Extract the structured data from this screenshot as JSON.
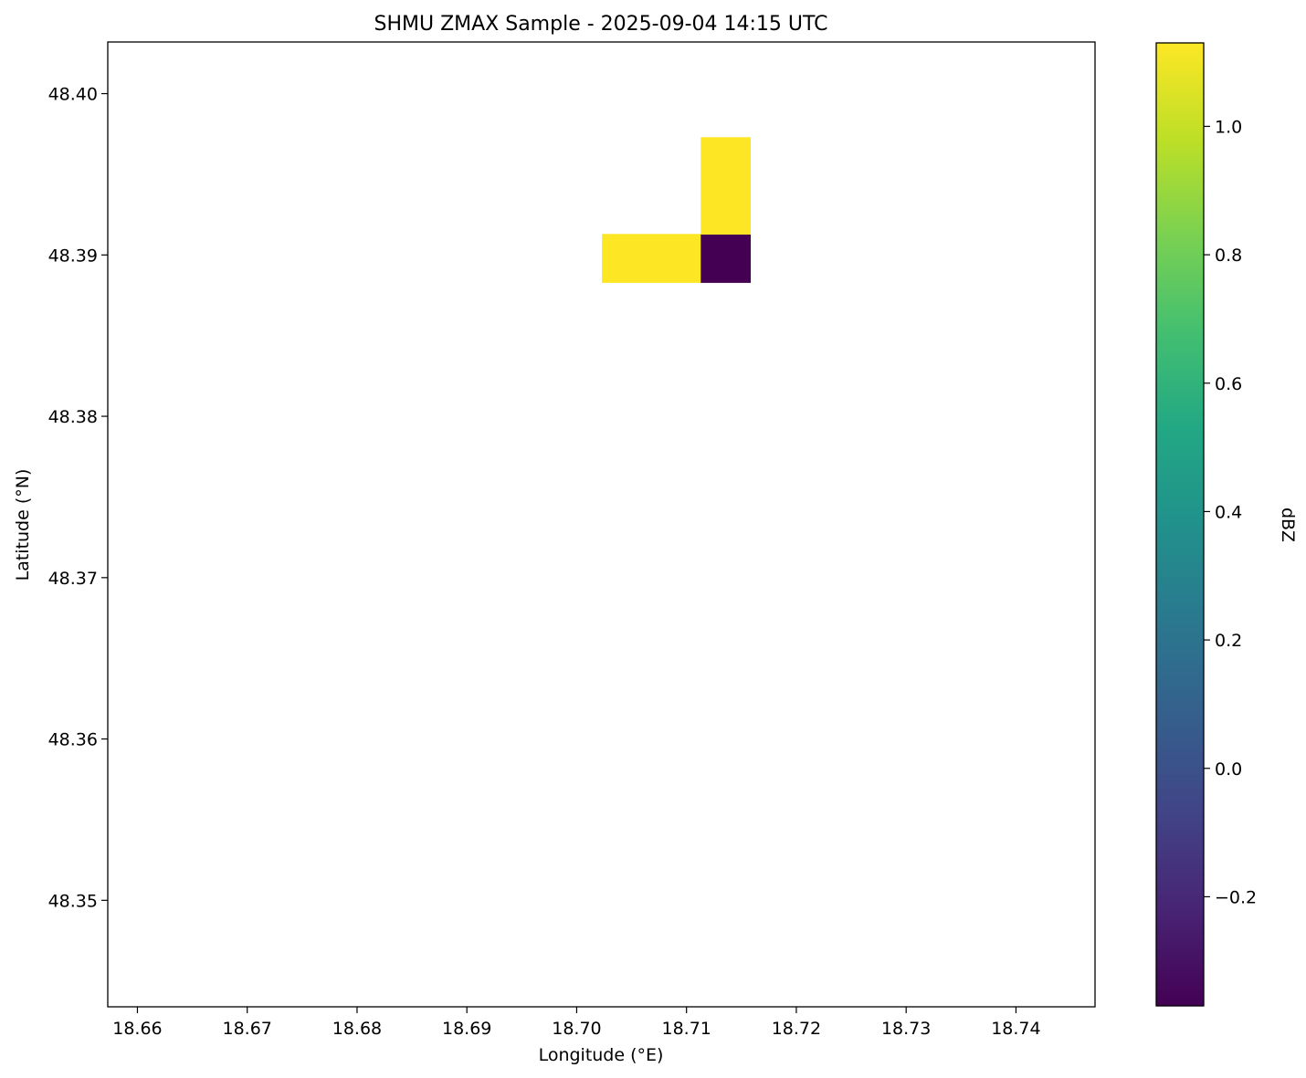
{
  "chart_data": {
    "type": "heatmap",
    "title": "SHMU ZMAX Sample - 2025-09-04 14:15 UTC",
    "xlabel": "Longitude (°E)",
    "ylabel": "Latitude (°N)",
    "xlim": [
      18.6573,
      18.7472
    ],
    "ylim": [
      48.3434,
      48.4032
    ],
    "xticks": [
      {
        "value": 18.66,
        "label": "18.66"
      },
      {
        "value": 18.67,
        "label": "18.67"
      },
      {
        "value": 18.68,
        "label": "18.68"
      },
      {
        "value": 18.69,
        "label": "18.69"
      },
      {
        "value": 18.7,
        "label": "18.70"
      },
      {
        "value": 18.71,
        "label": "18.71"
      },
      {
        "value": 18.72,
        "label": "18.72"
      },
      {
        "value": 18.73,
        "label": "18.73"
      },
      {
        "value": 18.74,
        "label": "18.74"
      }
    ],
    "yticks": [
      {
        "value": 48.35,
        "label": "48.35"
      },
      {
        "value": 48.36,
        "label": "48.36"
      },
      {
        "value": 48.37,
        "label": "48.37"
      },
      {
        "value": 48.38,
        "label": "48.38"
      },
      {
        "value": 48.39,
        "label": "48.39"
      },
      {
        "value": 48.4,
        "label": "48.40"
      }
    ],
    "grid": false,
    "cells": [
      {
        "lon_min": 18.7023,
        "lon_max": 18.7068,
        "lat_min": 48.3883,
        "lat_max": 48.3913,
        "value": 1.13
      },
      {
        "lon_min": 18.7068,
        "lon_max": 18.7113,
        "lat_min": 48.3883,
        "lat_max": 48.3913,
        "value": 1.13
      },
      {
        "lon_min": 18.7113,
        "lon_max": 18.7158,
        "lat_min": 48.3883,
        "lat_max": 48.3913,
        "value": -0.37
      },
      {
        "lon_min": 18.7113,
        "lon_max": 18.7158,
        "lat_min": 48.3913,
        "lat_max": 48.3973,
        "value": 1.13
      }
    ],
    "colorbar": {
      "label": "dBZ",
      "colormap": "viridis",
      "vmin": -0.37,
      "vmax": 1.13,
      "ticks": [
        {
          "value": -0.2,
          "label": "−0.2"
        },
        {
          "value": 0.0,
          "label": "0.0"
        },
        {
          "value": 0.2,
          "label": "0.2"
        },
        {
          "value": 0.4,
          "label": "0.4"
        },
        {
          "value": 0.6,
          "label": "0.6"
        },
        {
          "value": 0.8,
          "label": "0.8"
        },
        {
          "value": 1.0,
          "label": "1.0"
        }
      ],
      "stops": [
        "#440154",
        "#482475",
        "#414487",
        "#355f8d",
        "#2a788e",
        "#21918c",
        "#22a884",
        "#44bf70",
        "#7ad151",
        "#bddf26",
        "#fde725"
      ]
    }
  }
}
